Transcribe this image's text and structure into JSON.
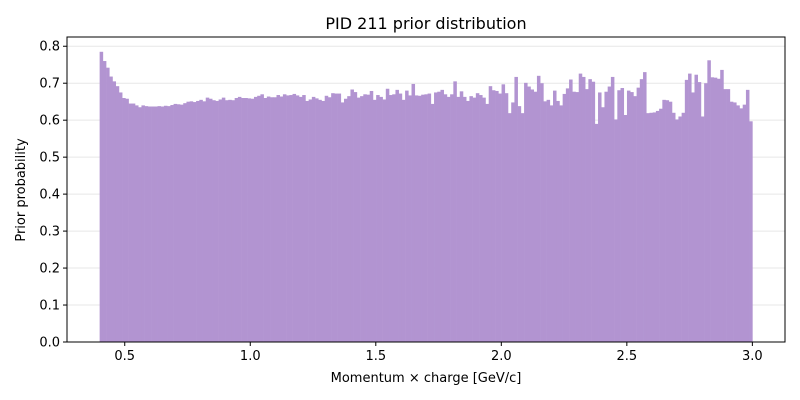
{
  "chart_data": {
    "type": "bar",
    "title": "PID 211 prior distribution",
    "xlabel": "Momentum × charge [GeV/c]",
    "ylabel": "Prior probability",
    "xlim": [
      0.27,
      3.13
    ],
    "ylim": [
      0.0,
      0.825
    ],
    "xticks": [
      0.5,
      1.0,
      1.5,
      2.0,
      2.5,
      3.0
    ],
    "xtick_labels": [
      "0.5",
      "1.0",
      "1.5",
      "2.0",
      "2.5",
      "3.0"
    ],
    "yticks": [
      0.0,
      0.1,
      0.2,
      0.3,
      0.4,
      0.5,
      0.6,
      0.7,
      0.8
    ],
    "ytick_labels": [
      "0.0",
      "0.1",
      "0.2",
      "0.3",
      "0.4",
      "0.5",
      "0.6",
      "0.7",
      "0.8"
    ],
    "grid": "y-major",
    "bar_color": "#b294d1",
    "bin_start": 0.4,
    "bin_end": 3.0,
    "values": [
      0.785,
      0.76,
      0.742,
      0.718,
      0.705,
      0.692,
      0.675,
      0.66,
      0.658,
      0.645,
      0.645,
      0.64,
      0.635,
      0.64,
      0.638,
      0.637,
      0.637,
      0.637,
      0.638,
      0.637,
      0.639,
      0.638,
      0.641,
      0.644,
      0.643,
      0.642,
      0.646,
      0.65,
      0.651,
      0.649,
      0.652,
      0.655,
      0.651,
      0.661,
      0.658,
      0.654,
      0.652,
      0.656,
      0.661,
      0.654,
      0.655,
      0.654,
      0.66,
      0.663,
      0.66,
      0.66,
      0.659,
      0.658,
      0.663,
      0.666,
      0.67,
      0.66,
      0.664,
      0.662,
      0.662,
      0.668,
      0.664,
      0.67,
      0.667,
      0.668,
      0.671,
      0.667,
      0.663,
      0.668,
      0.652,
      0.656,
      0.663,
      0.659,
      0.655,
      0.652,
      0.666,
      0.662,
      0.673,
      0.672,
      0.672,
      0.648,
      0.658,
      0.665,
      0.683,
      0.676,
      0.661,
      0.665,
      0.67,
      0.669,
      0.679,
      0.655,
      0.668,
      0.663,
      0.656,
      0.685,
      0.668,
      0.67,
      0.682,
      0.672,
      0.655,
      0.68,
      0.667,
      0.698,
      0.667,
      0.666,
      0.669,
      0.67,
      0.672,
      0.644,
      0.675,
      0.677,
      0.682,
      0.67,
      0.663,
      0.67,
      0.705,
      0.663,
      0.678,
      0.663,
      0.652,
      0.665,
      0.661,
      0.673,
      0.668,
      0.661,
      0.644,
      0.692,
      0.681,
      0.679,
      0.672,
      0.697,
      0.673,
      0.619,
      0.648,
      0.717,
      0.638,
      0.619,
      0.701,
      0.691,
      0.683,
      0.677,
      0.72,
      0.7,
      0.651,
      0.655,
      0.64,
      0.68,
      0.652,
      0.64,
      0.671,
      0.686,
      0.71,
      0.677,
      0.676,
      0.726,
      0.717,
      0.684,
      0.711,
      0.704,
      0.59,
      0.675,
      0.635,
      0.677,
      0.691,
      0.717,
      0.602,
      0.681,
      0.687,
      0.614,
      0.68,
      0.676,
      0.665,
      0.688,
      0.711,
      0.73,
      0.619,
      0.62,
      0.621,
      0.625,
      0.631,
      0.655,
      0.654,
      0.65,
      0.62,
      0.602,
      0.61,
      0.62,
      0.709,
      0.726,
      0.675,
      0.723,
      0.703,
      0.61,
      0.7,
      0.762,
      0.716,
      0.715,
      0.712,
      0.736,
      0.684,
      0.684,
      0.65,
      0.648,
      0.64,
      0.632,
      0.642,
      0.682,
      0.597
    ]
  }
}
